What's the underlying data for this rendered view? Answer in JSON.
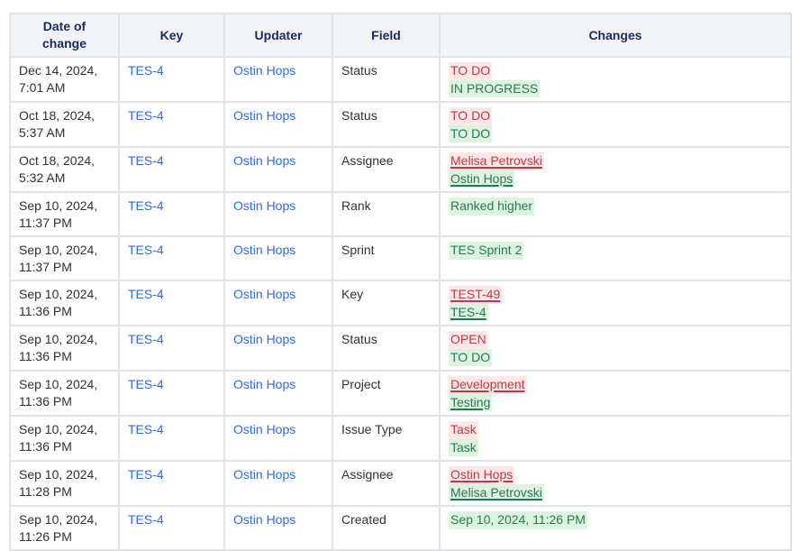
{
  "colors": {
    "border": "#dfe2e6",
    "header_bg": "#f3f4f6",
    "header_text": "#1c2b63",
    "body_text": "#2d3138",
    "link": "#2e6be2",
    "removed_text": "#c13745",
    "removed_bg": "#fce8e8",
    "added_text": "#25795a",
    "added_bg": "#def3de"
  },
  "table": {
    "headers": [
      "Date of change",
      "Key",
      "Updater",
      "Field",
      "Changes"
    ],
    "rows": [
      {
        "date": "Dec 14, 2024, 7:01 AM",
        "key": "TES-4",
        "updater": "Ostin Hops",
        "field": "Status",
        "changes": {
          "from": "TO DO",
          "to": "IN PROGRESS",
          "linked": false
        }
      },
      {
        "date": "Oct 18, 2024, 5:37 AM",
        "key": "TES-4",
        "updater": "Ostin Hops",
        "field": "Status",
        "changes": {
          "from": "TO DO",
          "to": "TO DO",
          "linked": false
        }
      },
      {
        "date": "Oct 18, 2024, 5:32 AM",
        "key": "TES-4",
        "updater": "Ostin Hops",
        "field": "Assignee",
        "changes": {
          "from": "Melisa Petrovski",
          "to": "Ostin Hops",
          "linked": true
        }
      },
      {
        "date": "Sep 10, 2024, 11:37 PM",
        "key": "TES-4",
        "updater": "Ostin Hops",
        "field": "Rank",
        "changes": {
          "from": null,
          "to": "Ranked higher",
          "linked": false
        }
      },
      {
        "date": "Sep 10, 2024, 11:37 PM",
        "key": "TES-4",
        "updater": "Ostin Hops",
        "field": "Sprint",
        "changes": {
          "from": null,
          "to": "TES Sprint 2",
          "linked": false
        }
      },
      {
        "date": "Sep 10, 2024, 11:36 PM",
        "key": "TES-4",
        "updater": "Ostin Hops",
        "field": "Key",
        "changes": {
          "from": "TEST-49",
          "to": "TES-4",
          "linked": true
        }
      },
      {
        "date": "Sep 10, 2024, 11:36 PM",
        "key": "TES-4",
        "updater": "Ostin Hops",
        "field": "Status",
        "changes": {
          "from": "OPEN",
          "to": "TO DO",
          "linked": false
        }
      },
      {
        "date": "Sep 10, 2024, 11:36 PM",
        "key": "TES-4",
        "updater": "Ostin Hops",
        "field": "Project",
        "changes": {
          "from": "Development",
          "to": "Testing",
          "linked": true
        }
      },
      {
        "date": "Sep 10, 2024, 11:36 PM",
        "key": "TES-4",
        "updater": "Ostin Hops",
        "field": "Issue Type",
        "changes": {
          "from": "Task",
          "to": "Task",
          "linked": false
        }
      },
      {
        "date": "Sep 10, 2024, 11:28 PM",
        "key": "TES-4",
        "updater": "Ostin Hops",
        "field": "Assignee",
        "changes": {
          "from": "Ostin Hops",
          "to": "Melisa Petrovski",
          "linked": true
        }
      },
      {
        "date": "Sep 10, 2024, 11:26 PM",
        "key": "TES-4",
        "updater": "Ostin Hops",
        "field": "Created",
        "changes": {
          "from": null,
          "to": "Sep 10, 2024, 11:26 PM",
          "linked": false
        }
      }
    ]
  }
}
